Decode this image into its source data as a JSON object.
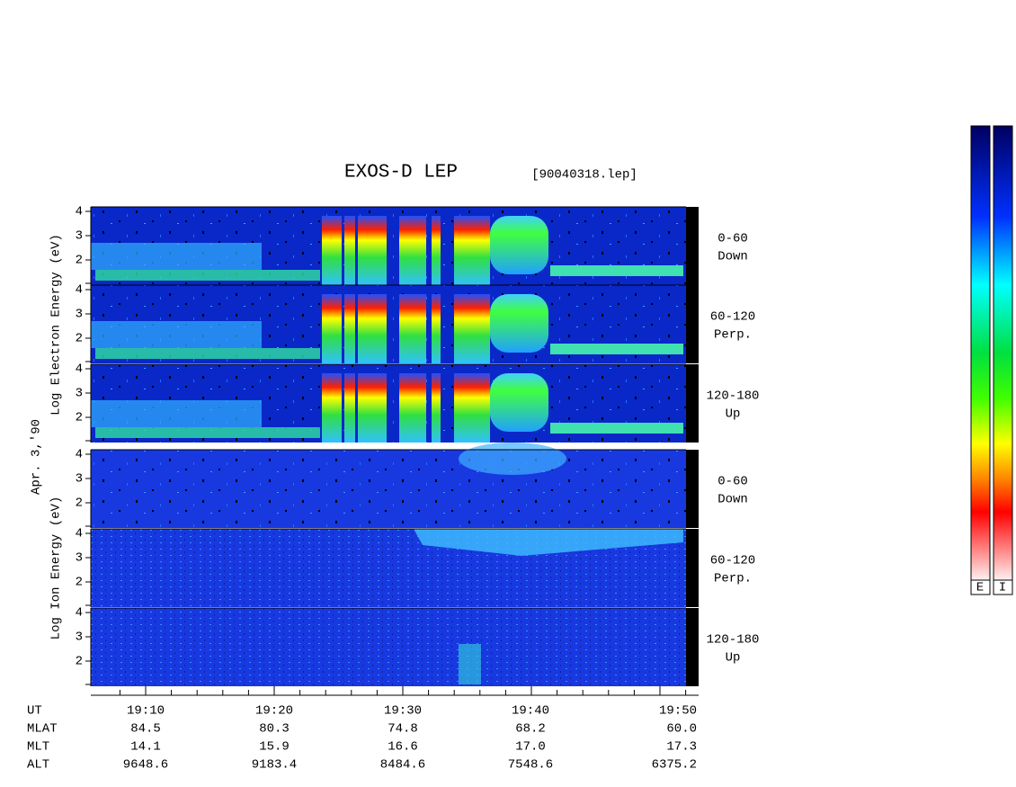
{
  "title": "EXOS-D LEP",
  "file": "[90040318.lep]",
  "date_label": "Apr. 3,'90",
  "groups": [
    {
      "ylabel": "Log Electron Energy (eV)",
      "panels": [
        {
          "label": [
            "0-60",
            "Down"
          ],
          "yticks": [
            "2",
            "3",
            "4"
          ]
        },
        {
          "label": [
            "60-120",
            "Perp."
          ],
          "yticks": [
            "2",
            "3",
            "4"
          ]
        },
        {
          "label": [
            "120-180",
            "Up"
          ],
          "yticks": [
            "2",
            "3",
            "4"
          ]
        }
      ]
    },
    {
      "ylabel": "Log Ion Energy (eV)",
      "panels": [
        {
          "label": [
            "0-60",
            "Down"
          ],
          "yticks": [
            "2",
            "3",
            "4"
          ]
        },
        {
          "label": [
            "60-120",
            "Perp."
          ],
          "yticks": [
            "2",
            "3",
            "4"
          ]
        },
        {
          "label": [
            "120-180",
            "Up"
          ],
          "yticks": [
            "2",
            "3",
            "4"
          ]
        }
      ]
    }
  ],
  "time_axis": [
    {
      "label": "UT",
      "values": [
        "19:10",
        "19:20",
        "19:30",
        "19:40",
        "19:50"
      ]
    },
    {
      "label": "MLAT",
      "values": [
        "84.5",
        "80.3",
        "74.8",
        "68.2",
        "60.0"
      ]
    },
    {
      "label": "MLT",
      "values": [
        "14.1",
        "15.9",
        "16.6",
        "17.0",
        "17.3"
      ]
    },
    {
      "label": "ALT",
      "values": [
        "9648.6",
        "9183.4",
        "8484.6",
        "7548.6",
        "6375.2"
      ]
    }
  ],
  "colorbar_labels": [
    "E",
    "I"
  ]
}
